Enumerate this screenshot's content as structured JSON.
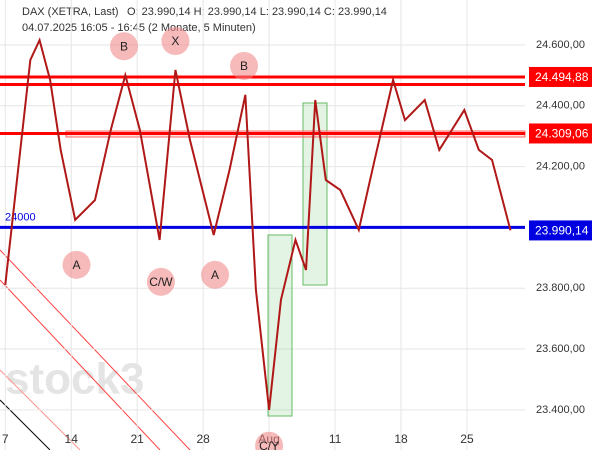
{
  "chart_data": {
    "type": "line",
    "title": "DAX (XETRA, Last)",
    "ohlc": "O: 23.990,14  H: 23.990,14  L: 23.990,14  C: 23.990,14",
    "subtitle": "04.07.2025 16:05 - 16:45  (2 Monate, 5 Minuten)",
    "watermark": "stock3",
    "x": [
      0,
      1.9,
      2.6,
      3.4,
      4.2,
      5.3,
      6.8,
      8,
      9.1,
      10.2,
      11.7,
      12.9,
      14,
      15.8,
      17,
      18.2,
      19,
      20,
      20.9,
      22,
      22.8,
      23.5,
      24.3,
      25.4,
      26.8,
      28,
      29.4,
      30.3,
      31.8,
      32.9,
      34.8,
      35.9,
      36.9,
      37.5,
      38.3
    ],
    "series": [
      {
        "name": "DAX",
        "color": "#b01818",
        "values": [
          23811,
          24551,
          24616,
          24485,
          24255,
          24025,
          24090,
          24321,
          24501,
          24321,
          23959,
          24518,
          24288,
          23975,
          24189,
          24436,
          23795,
          23400,
          23762,
          23959,
          23860,
          24419,
          24156,
          24123,
          23992,
          24222,
          24485,
          24353,
          24419,
          24255,
          24386,
          24255,
          24222,
          24123,
          23990.14
        ]
      }
    ],
    "xlim": [
      -0.4,
      39.4
    ],
    "xticks": [
      {
        "value": 0,
        "label": "7"
      },
      {
        "value": 5,
        "label": "14"
      },
      {
        "value": 10,
        "label": "21"
      },
      {
        "value": 15,
        "label": "28"
      },
      {
        "value": 20,
        "label": "Aug"
      },
      {
        "value": 25,
        "label": "11"
      },
      {
        "value": 30,
        "label": "18"
      },
      {
        "value": 35,
        "label": "25"
      }
    ],
    "ylim": [
      23268,
      24748
    ],
    "yticks": [
      {
        "value": 23400,
        "label": "23.400,00"
      },
      {
        "value": 23600,
        "label": "23.600,00"
      },
      {
        "value": 23800,
        "label": "23.800,00"
      },
      {
        "value": 24000,
        "label": "24.000,00"
      },
      {
        "value": 24200,
        "label": "24.200,00"
      },
      {
        "value": 24400,
        "label": "24.400,00"
      },
      {
        "value": 24600,
        "label": "24.600,00"
      }
    ],
    "grid": true,
    "hlines": [
      {
        "value": 24000,
        "label": "24000",
        "color": "#0000e0"
      },
      {
        "value": 24470,
        "color": "#ff0000"
      },
      {
        "value": 24494.88,
        "color": "#ff0000"
      },
      {
        "value": 24309.06,
        "color": "#ff0000"
      }
    ],
    "price_labels": [
      {
        "value": 24494.88,
        "label": "24.494,88",
        "color": "#ff0000"
      },
      {
        "value": 24309.06,
        "label": "24.309,06",
        "color": "#ff0000"
      },
      {
        "value": 23990.14,
        "label": "23.990,14",
        "color": "#0000e0"
      }
    ],
    "annotations": [
      {
        "text": "B",
        "x": 9.0,
        "y": 24596
      },
      {
        "text": "X",
        "x": 12.9,
        "y": 24613
      },
      {
        "text": "B",
        "x": 18.1,
        "y": 24531
      },
      {
        "text": "A",
        "x": 5.4,
        "y": 23877
      },
      {
        "text": "C/W",
        "x": 11.8,
        "y": 23821
      },
      {
        "text": "A",
        "x": 15.9,
        "y": 23844
      },
      {
        "text": "C/Y",
        "x": 20,
        "y": 23282
      }
    ]
  }
}
